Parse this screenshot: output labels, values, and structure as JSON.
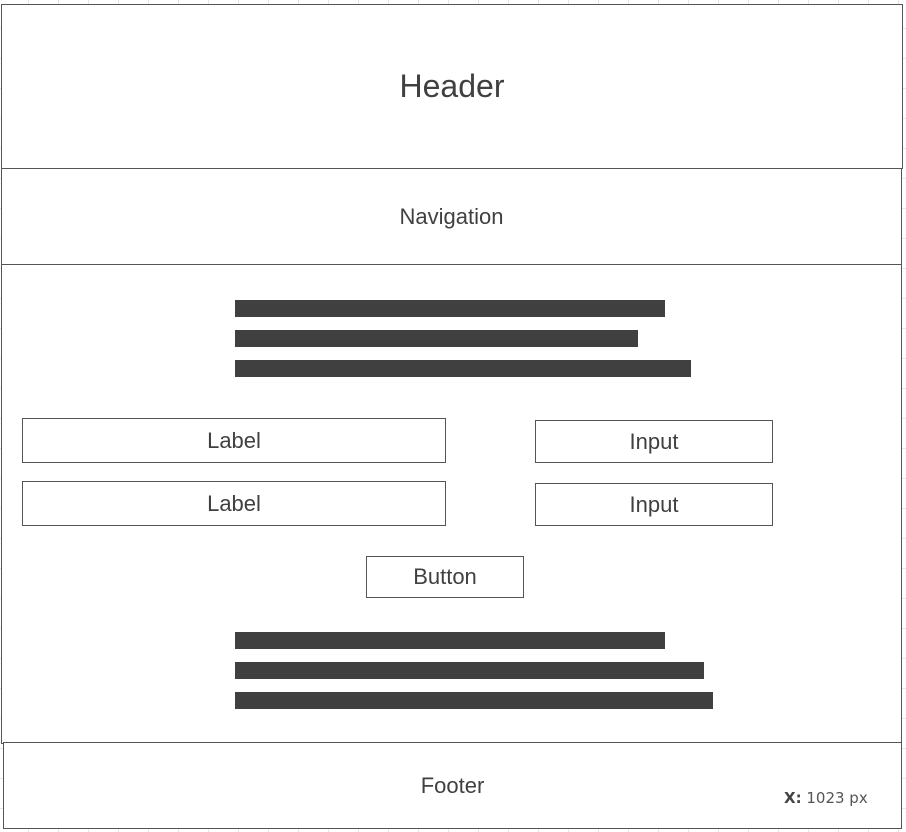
{
  "header": {
    "label": "Header"
  },
  "navigation": {
    "label": "Navigation"
  },
  "content": {
    "text_block_top": {
      "lines": 3
    },
    "form": {
      "rows": [
        {
          "label": "Label",
          "input": "Input"
        },
        {
          "label": "Label",
          "input": "Input"
        }
      ],
      "button": "Button"
    },
    "text_block_bottom": {
      "lines": 3
    }
  },
  "footer": {
    "label": "Footer"
  },
  "coordinate_readout": {
    "axis": "X:",
    "value": "1023 px"
  },
  "colors": {
    "outline": "#555555",
    "text_bar": "#404040",
    "background": "#ffffff",
    "grid": "#e6e6e6"
  }
}
